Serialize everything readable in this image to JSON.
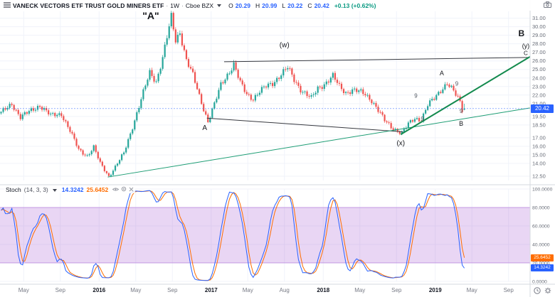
{
  "toolbar": {
    "symbol_title": "VANECK VECTORS ETF TRUST GOLD MINERS ETF",
    "sep": "·",
    "interval": "1W",
    "exchange": "Cboe BZX",
    "o_label": "O",
    "o": "20.29",
    "h_label": "H",
    "h": "20.99",
    "l_label": "L",
    "l": "20.22",
    "c_label": "C",
    "c": "20.42",
    "change": "+0.13 (+0.62%)",
    "value_color": "#2962ff",
    "change_color": "#089981"
  },
  "stoch_header": {
    "title": "Stoch",
    "params": "(14, 3, 3)",
    "k": "14.3242",
    "d": "25.6452",
    "k_color": "#2962ff",
    "d_color": "#ff6d00"
  },
  "price_axis": {
    "labels": [
      31.0,
      30.0,
      29.0,
      28.0,
      27.0,
      26.0,
      25.0,
      24.0,
      23.0,
      22.0,
      21.0,
      19.5,
      18.5,
      17.0,
      16.0,
      15.0,
      14.0,
      12.5
    ],
    "badge": "20.42",
    "badge_color": "#2962ff"
  },
  "stoch_axis": {
    "labels": [
      100,
      80,
      60,
      40,
      20,
      0
    ]
  },
  "time_axis": {
    "labels": [
      {
        "text": "May",
        "week": 11
      },
      {
        "text": "Sep",
        "week": 28
      },
      {
        "text": "2016",
        "week": 46,
        "major": true
      },
      {
        "text": "May",
        "week": 63
      },
      {
        "text": "Sep",
        "week": 80
      },
      {
        "text": "2017",
        "week": 98,
        "major": true
      },
      {
        "text": "May",
        "week": 115
      },
      {
        "text": "Aug",
        "week": 132
      },
      {
        "text": "2018",
        "week": 150,
        "major": true
      },
      {
        "text": "May",
        "week": 167
      },
      {
        "text": "Sep",
        "week": 184
      },
      {
        "text": "2019",
        "week": 202,
        "major": true
      },
      {
        "text": "May",
        "week": 219
      },
      {
        "text": "Sep",
        "week": 236
      }
    ]
  },
  "chart_data": {
    "type": "candlestick",
    "interval": "weekly",
    "weeks_total": 246,
    "last_week": 215,
    "price_range": [
      12.0,
      31.8
    ],
    "price_path_waypoints": [
      [
        0,
        19.9
      ],
      [
        5,
        21.0
      ],
      [
        9,
        19.4
      ],
      [
        14,
        20.2
      ],
      [
        18,
        20.8
      ],
      [
        23,
        19.6
      ],
      [
        28,
        19.8
      ],
      [
        32,
        17.8
      ],
      [
        36,
        15.6
      ],
      [
        40,
        14.9
      ],
      [
        43,
        15.9
      ],
      [
        46,
        14.0
      ],
      [
        50,
        12.5
      ],
      [
        53,
        13.6
      ],
      [
        57,
        15.2
      ],
      [
        60,
        17.5
      ],
      [
        63,
        19.9
      ],
      [
        66,
        22.3
      ],
      [
        69,
        24.6
      ],
      [
        72,
        23.6
      ],
      [
        75,
        26.4
      ],
      [
        79,
        31.1
      ],
      [
        81,
        28.4
      ],
      [
        83,
        29.4
      ],
      [
        86,
        26.1
      ],
      [
        89,
        24.3
      ],
      [
        92,
        21.9
      ],
      [
        96,
        18.9
      ],
      [
        99,
        20.9
      ],
      [
        102,
        23.2
      ],
      [
        105,
        24.4
      ],
      [
        108,
        25.6
      ],
      [
        111,
        23.4
      ],
      [
        114,
        22.1
      ],
      [
        117,
        21.6
      ],
      [
        120,
        22.4
      ],
      [
        123,
        23.0
      ],
      [
        126,
        23.4
      ],
      [
        129,
        24.2
      ],
      [
        133,
        25.2
      ],
      [
        136,
        23.8
      ],
      [
        139,
        22.7
      ],
      [
        142,
        22.0
      ],
      [
        144,
        21.6
      ],
      [
        147,
        22.8
      ],
      [
        150,
        23.3
      ],
      [
        154,
        24.2
      ],
      [
        157,
        23.0
      ],
      [
        160,
        22.3
      ],
      [
        163,
        22.6
      ],
      [
        166,
        22.4
      ],
      [
        169,
        22.1
      ],
      [
        172,
        21.4
      ],
      [
        175,
        20.2
      ],
      [
        178,
        19.0
      ],
      [
        181,
        18.3
      ],
      [
        186,
        17.5
      ],
      [
        189,
        18.6
      ],
      [
        192,
        19.3
      ],
      [
        195,
        19.1
      ],
      [
        198,
        20.8
      ],
      [
        201,
        21.6
      ],
      [
        204,
        22.6
      ],
      [
        207,
        23.4
      ],
      [
        210,
        22.4
      ],
      [
        213,
        21.2
      ],
      [
        214,
        20.3
      ],
      [
        215,
        20.42
      ]
    ],
    "last_candle": {
      "o": 20.29,
      "h": 20.99,
      "l": 20.22,
      "c": 20.42
    },
    "trendlines": [
      {
        "from": [
          104,
          25.9
        ],
        "to": [
          245,
          26.4
        ],
        "color": "#36383f",
        "width": 1
      },
      {
        "from": [
          96,
          19.3
        ],
        "to": [
          187,
          17.7
        ],
        "color": "#36383f",
        "width": 1
      },
      {
        "from": [
          50,
          12.4
        ],
        "to": [
          246,
          20.5
        ],
        "color": "#1d9d74",
        "width": 1
      },
      {
        "from": [
          186,
          17.4
        ],
        "to": [
          246,
          26.5
        ],
        "color": "#138a4e",
        "width": 2
      }
    ],
    "annotations": [
      {
        "text": "\"A\"",
        "week": 70,
        "price": 30.9,
        "size": 14,
        "weight": "bold",
        "color": "#16181d"
      },
      {
        "text": "(w)",
        "week": 132,
        "price": 27.6,
        "size": 10,
        "color": "#16181d"
      },
      {
        "text": "A",
        "week": 95,
        "price": 17.9,
        "size": 10,
        "color": "#16181d"
      },
      {
        "text": "(x)",
        "week": 186,
        "price": 16.1,
        "size": 10,
        "color": "#16181d"
      },
      {
        "text": "A",
        "week": 205,
        "price": 24.3,
        "size": 9,
        "color": "#16181d"
      },
      {
        "text": "9",
        "week": 193,
        "price": 21.7,
        "size": 8,
        "color": "#555a64"
      },
      {
        "text": "9",
        "week": 196,
        "price": 19.0,
        "size": 8,
        "color": "#555a64"
      },
      {
        "text": "9",
        "week": 212,
        "price": 23.1,
        "size": 8,
        "color": "#555a64"
      },
      {
        "text": "9",
        "week": 214,
        "price": 19.9,
        "size": 8,
        "color": "#555a64"
      },
      {
        "text": "B",
        "week": 214,
        "price": 18.4,
        "size": 9,
        "color": "#16181d"
      },
      {
        "text": "B",
        "week": 242,
        "price": 28.9,
        "size": 12,
        "weight": "bold",
        "color": "#16181d"
      },
      {
        "text": "(y)",
        "week": 244,
        "price": 27.5,
        "size": 9,
        "color": "#16181d"
      },
      {
        "text": "C",
        "week": 244,
        "price": 26.7,
        "size": 8,
        "color": "#16181d"
      }
    ],
    "stochastic": {
      "period": 14,
      "k_smoothing": 3,
      "d_smoothing": 3,
      "band": [
        20,
        80
      ],
      "current_k": 14.3242,
      "current_d": 25.6452,
      "k_color": "#2962ff",
      "d_color": "#ff6d00",
      "band_fill": "rgba(154,70,207,0.22)"
    },
    "candle_up_color": "#26a69a",
    "candle_down_color": "#ef5350"
  }
}
